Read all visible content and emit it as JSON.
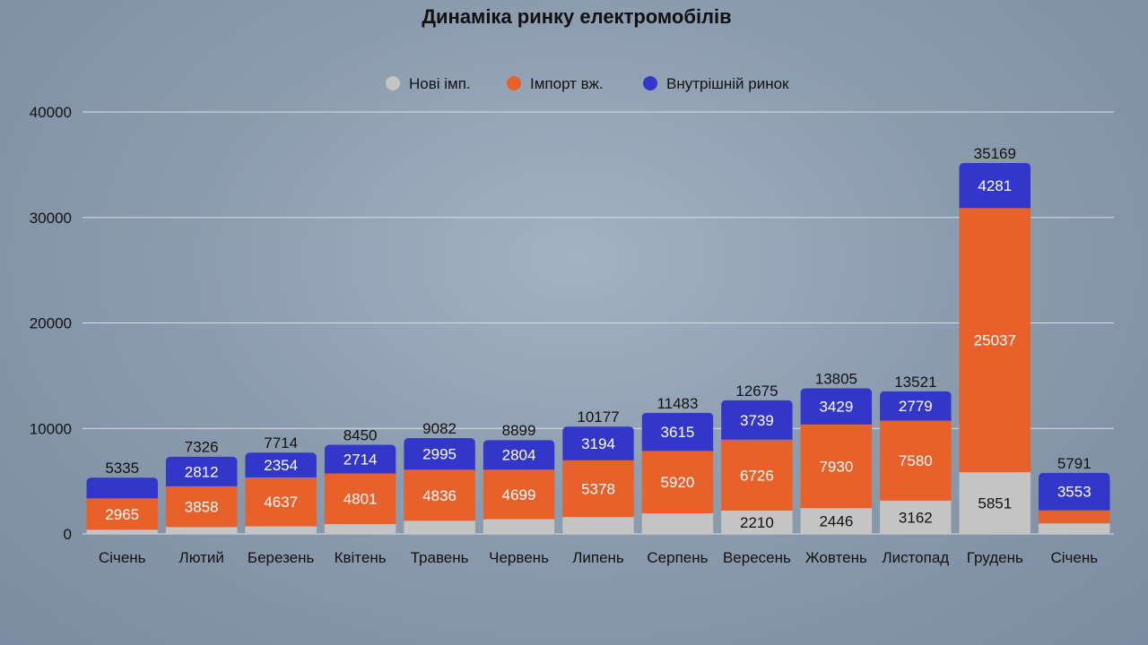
{
  "chart_data": {
    "type": "bar",
    "stacked": true,
    "title": "Динаміка ринку електромобілів",
    "xlabel": "",
    "ylabel": "",
    "ylim": [
      0,
      40000
    ],
    "yticks": [
      0,
      10000,
      20000,
      30000,
      40000
    ],
    "grid": true,
    "legend_position": "top",
    "categories": [
      "Січень",
      "Лютий",
      "Березень",
      "Квітень",
      "Травень",
      "Червень",
      "Липень",
      "Серпень",
      "Вересень",
      "Жовтень",
      "Листопад",
      "Грудень",
      "Січень"
    ],
    "series": [
      {
        "name": "Нові імп.",
        "color": "#c4c4c4",
        "values": [
          405,
          656,
          723,
          935,
          1251,
          1396,
          1605,
          1948,
          2210,
          2446,
          3162,
          5851,
          1000
        ],
        "labels": [
          null,
          null,
          null,
          null,
          null,
          null,
          null,
          null,
          "2210",
          "2446",
          "3162",
          "5851",
          null
        ]
      },
      {
        "name": "Імпорт вж.",
        "color": "#e8602a",
        "values": [
          2965,
          3858,
          4637,
          4801,
          4836,
          4699,
          5378,
          5920,
          6726,
          7930,
          7580,
          25037,
          1238
        ],
        "labels": [
          "2965",
          "3858",
          "4637",
          "4801",
          "4836",
          "4699",
          "5378",
          "5920",
          "6726",
          "7930",
          "7580",
          "25037",
          null
        ]
      },
      {
        "name": "Внутрішній ринок",
        "color": "#3237c9",
        "values": [
          1965,
          2812,
          2354,
          2714,
          2995,
          2804,
          3194,
          3615,
          3739,
          3429,
          2779,
          4281,
          3553
        ],
        "labels": [
          null,
          "2812",
          "2354",
          "2714",
          "2995",
          "2804",
          "3194",
          "3615",
          "3739",
          "3429",
          "2779",
          "4281",
          "3553"
        ]
      }
    ],
    "totals": [
      "5335",
      "7326",
      "7714",
      "8450",
      "9082",
      "8899",
      "10177",
      "11483",
      "12675",
      "13805",
      "13521",
      "35169",
      "5791"
    ]
  }
}
